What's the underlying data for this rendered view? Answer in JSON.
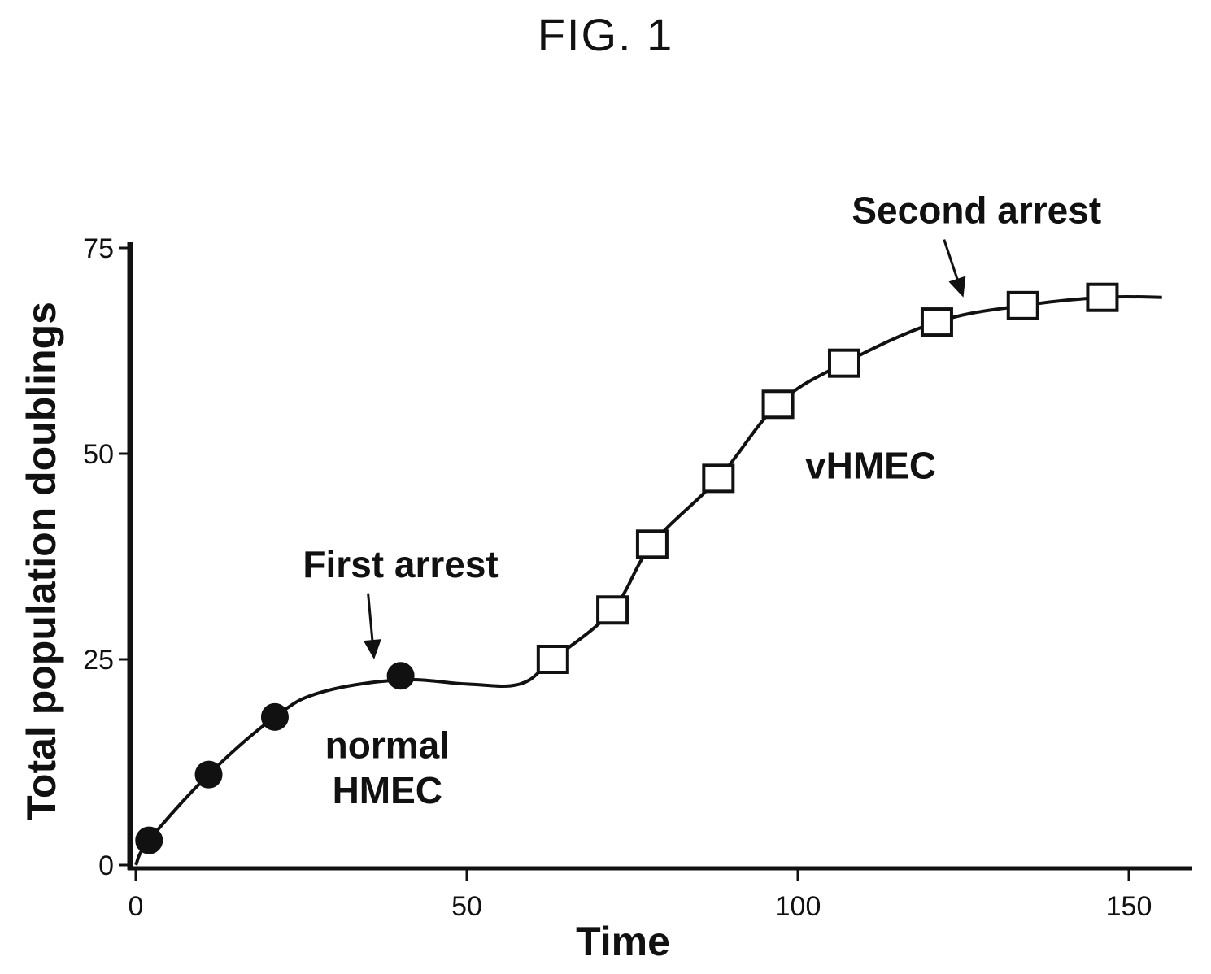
{
  "figure_title": "FIG. 1",
  "chart_data": {
    "type": "line",
    "xlabel": "Time",
    "ylabel": "Total population doublings",
    "xlim": [
      0,
      157
    ],
    "ylim": [
      0,
      75
    ],
    "xticks": [
      0,
      50,
      100,
      150
    ],
    "yticks": [
      0,
      25,
      50,
      75
    ],
    "grid": false,
    "series": [
      {
        "name": "normal HMEC",
        "marker": "filled-circle",
        "points": [
          {
            "x": 2,
            "y": 3
          },
          {
            "x": 11,
            "y": 11
          },
          {
            "x": 21,
            "y": 18
          },
          {
            "x": 40,
            "y": 23
          }
        ]
      },
      {
        "name": "vHMEC",
        "marker": "open-square",
        "points": [
          {
            "x": 63,
            "y": 25
          },
          {
            "x": 72,
            "y": 31
          },
          {
            "x": 78,
            "y": 39
          },
          {
            "x": 88,
            "y": 47
          },
          {
            "x": 97,
            "y": 56
          },
          {
            "x": 107,
            "y": 61
          },
          {
            "x": 121,
            "y": 66
          },
          {
            "x": 134,
            "y": 68
          },
          {
            "x": 146,
            "y": 69
          }
        ]
      }
    ],
    "curve": [
      {
        "x": 0,
        "y": 0
      },
      {
        "x": 2,
        "y": 3
      },
      {
        "x": 11,
        "y": 11
      },
      {
        "x": 21,
        "y": 18
      },
      {
        "x": 28,
        "y": 21
      },
      {
        "x": 40,
        "y": 22.5
      },
      {
        "x": 50,
        "y": 22
      },
      {
        "x": 58,
        "y": 22
      },
      {
        "x": 63,
        "y": 25
      },
      {
        "x": 72,
        "y": 31
      },
      {
        "x": 78,
        "y": 39
      },
      {
        "x": 88,
        "y": 47
      },
      {
        "x": 97,
        "y": 56
      },
      {
        "x": 107,
        "y": 61
      },
      {
        "x": 121,
        "y": 66
      },
      {
        "x": 134,
        "y": 68
      },
      {
        "x": 146,
        "y": 69
      },
      {
        "x": 155,
        "y": 69
      }
    ],
    "annotations": [
      {
        "text": "First arrest",
        "x": 40,
        "y": 35,
        "arrow_to": {
          "x": 36,
          "y": 25
        }
      },
      {
        "text": "Second arrest",
        "x": 127,
        "y": 78,
        "arrow_to": {
          "x": 125,
          "y": 69
        }
      },
      {
        "text": "normal",
        "x": 38,
        "y": 13,
        "arrow_to": null
      },
      {
        "text": "HMEC",
        "x": 38,
        "y": 7.5,
        "arrow_to": null
      },
      {
        "text": "vHMEC",
        "x": 111,
        "y": 47,
        "arrow_to": null
      }
    ]
  }
}
